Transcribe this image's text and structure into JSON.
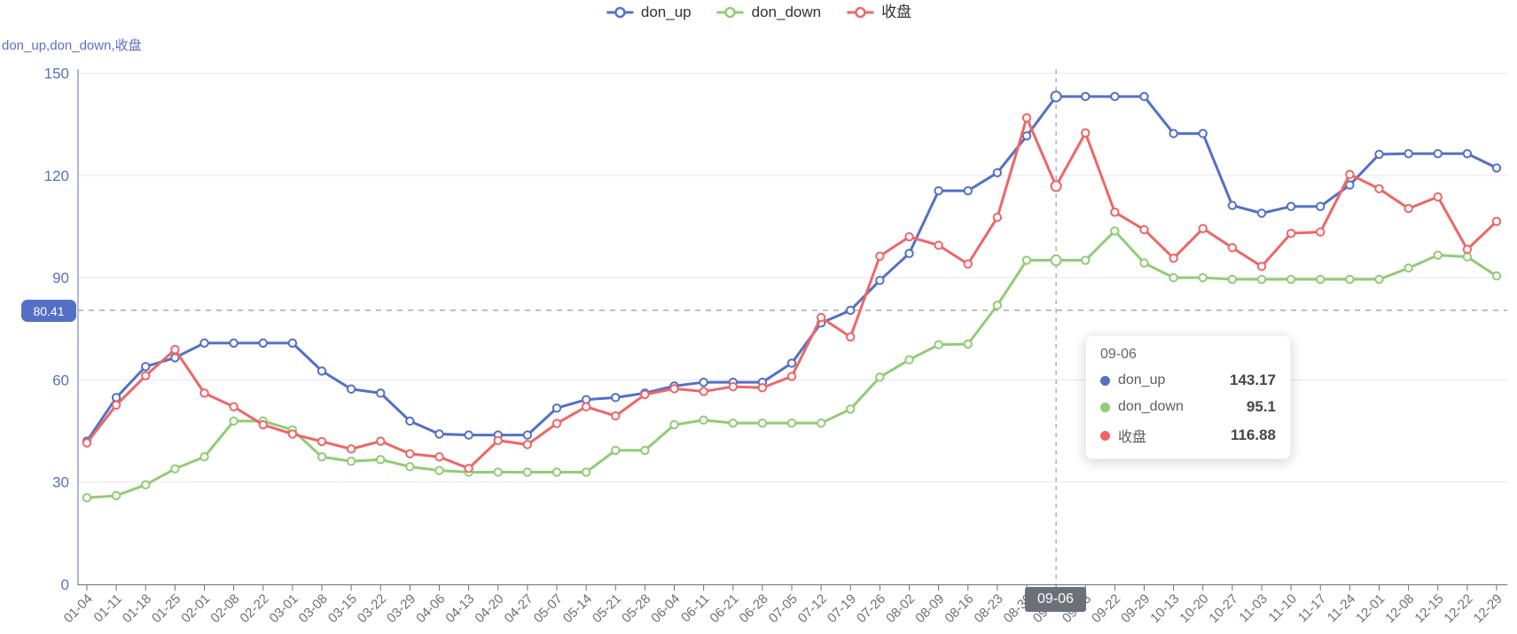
{
  "chart_data": {
    "type": "line",
    "title": "",
    "y_axis_name": "don_up,don_down,收盘",
    "y_axis": {
      "min": 0,
      "max": 150,
      "interval": 30,
      "ticks": [
        0,
        30,
        60,
        90,
        120,
        150
      ]
    },
    "grid": true,
    "legend_position": "top-center",
    "sampling_note": "values read at weekly axis ticks",
    "categories": [
      "01-04",
      "01-11",
      "01-18",
      "01-25",
      "02-01",
      "02-08",
      "02-22",
      "03-01",
      "03-08",
      "03-15",
      "03-22",
      "03-29",
      "04-06",
      "04-13",
      "04-20",
      "04-27",
      "05-07",
      "05-14",
      "05-21",
      "05-28",
      "06-04",
      "06-11",
      "06-21",
      "06-28",
      "07-05",
      "07-12",
      "07-19",
      "07-26",
      "08-02",
      "08-09",
      "08-16",
      "08-23",
      "08-30",
      "09-06",
      "09-13",
      "09-22",
      "09-29",
      "10-13",
      "10-20",
      "10-27",
      "11-03",
      "11-10",
      "11-17",
      "11-24",
      "12-01",
      "12-08",
      "12-15",
      "12-22",
      "12-29"
    ],
    "series": [
      {
        "name": "don_up",
        "color": "#5470C6",
        "values": [
          42.0,
          54.8,
          63.9,
          66.5,
          70.8,
          70.8,
          70.8,
          70.8,
          62.6,
          57.3,
          56.1,
          47.9,
          44.1,
          43.8,
          43.8,
          43.8,
          51.7,
          54.2,
          54.8,
          56.1,
          58.2,
          59.3,
          59.3,
          59.3,
          64.9,
          76.7,
          80.41,
          89.2,
          97.1,
          115.5,
          115.5,
          120.8,
          131.6,
          143.17,
          143.17,
          143.17,
          143.17,
          132.3,
          132.3,
          111.2,
          108.9,
          110.9,
          110.9,
          117.2,
          126.2,
          126.4,
          126.4,
          126.4,
          122.2
        ]
      },
      {
        "name": "don_down",
        "color": "#91CC75",
        "values": [
          25.4,
          26.0,
          29.2,
          33.9,
          37.4,
          47.9,
          47.9,
          45.3,
          37.4,
          36.1,
          36.6,
          34.5,
          33.4,
          32.9,
          32.9,
          32.9,
          32.9,
          32.9,
          39.3,
          39.3,
          46.8,
          48.2,
          47.3,
          47.3,
          47.3,
          47.3,
          51.4,
          60.8,
          65.9,
          70.3,
          70.5,
          81.9,
          95.1,
          95.1,
          95.1,
          103.7,
          94.3,
          90.0,
          90.0,
          89.5,
          89.5,
          89.5,
          89.5,
          89.5,
          89.5,
          92.8,
          96.6,
          96.1,
          90.5
        ]
      },
      {
        "name": "收盘",
        "color": "#EE6666",
        "values": [
          41.5,
          52.6,
          61.2,
          68.9,
          56.1,
          52.1,
          46.8,
          44.1,
          41.9,
          39.7,
          42.0,
          38.3,
          37.4,
          34.0,
          42.2,
          41.0,
          47.2,
          52.1,
          49.4,
          55.7,
          57.4,
          56.6,
          58.0,
          57.7,
          61.0,
          78.3,
          72.6,
          96.3,
          102.0,
          99.5,
          94.0,
          107.7,
          136.9,
          116.88,
          132.5,
          109.2,
          104.1,
          95.7,
          104.4,
          98.8,
          93.3,
          103.0,
          103.4,
          120.3,
          116.1,
          110.3,
          113.7,
          98.3,
          106.5
        ]
      }
    ],
    "mark_line": {
      "label": "80.41",
      "value": 80.41,
      "style": "dashed"
    },
    "axis_pointer": {
      "label": "09-06",
      "index": 33,
      "style": "dashed"
    }
  },
  "tooltip": {
    "date": "09-06",
    "rows": [
      {
        "name": "don_up",
        "value": "143.17"
      },
      {
        "name": "don_down",
        "value": "95.1"
      },
      {
        "name": "收盘",
        "value": "116.88"
      }
    ]
  },
  "colors": {
    "axis_label_blue": "#5B6FC5",
    "axis_label_gray": "#6E7079",
    "gridline": "#E2E7F1",
    "pointer_line": "#9aa0a6",
    "markline_bg": "#5470C6",
    "pointer_label_bg": "#6E7079"
  }
}
